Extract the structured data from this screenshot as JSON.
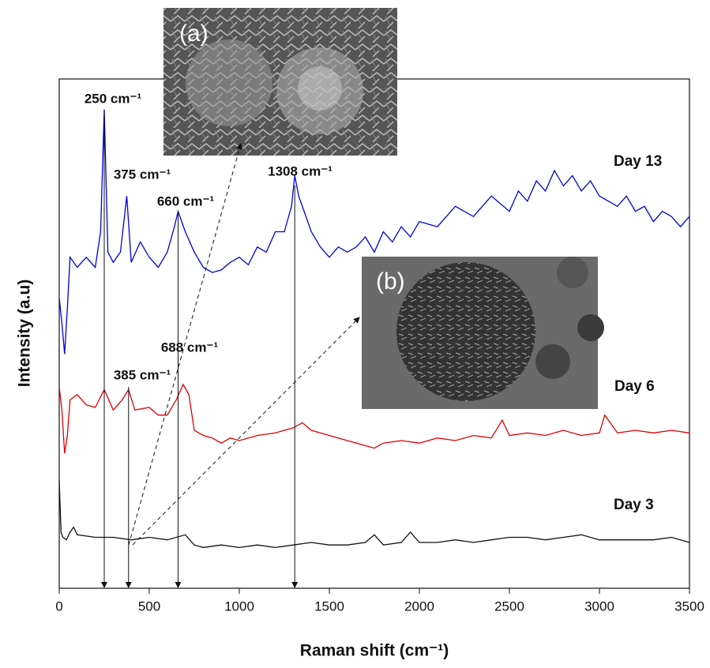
{
  "chart_data": {
    "type": "line",
    "xlabel": "Raman shift (cm⁻¹)",
    "ylabel": "Intensity (a.u)",
    "xlim": [
      0,
      3500
    ],
    "xticks": [
      0,
      500,
      1000,
      1500,
      2000,
      2500,
      3000,
      3500
    ],
    "ylim": [
      0,
      100
    ],
    "series": [
      {
        "name": "Day 13",
        "color": "#0000e0",
        "x": [
          0,
          15,
          30,
          45,
          60,
          100,
          150,
          200,
          230,
          250,
          270,
          300,
          340,
          375,
          400,
          450,
          500,
          550,
          600,
          640,
          660,
          700,
          750,
          800,
          850,
          900,
          950,
          1000,
          1050,
          1100,
          1150,
          1200,
          1250,
          1290,
          1308,
          1330,
          1370,
          1400,
          1450,
          1500,
          1550,
          1600,
          1650,
          1700,
          1750,
          1800,
          1850,
          1900,
          1950,
          2000,
          2100,
          2200,
          2300,
          2400,
          2500,
          2550,
          2600,
          2650,
          2700,
          2750,
          2800,
          2850,
          2900,
          2950,
          3000,
          3050,
          3100,
          3150,
          3200,
          3250,
          3300,
          3350,
          3400,
          3450,
          3500
        ],
        "values": [
          57,
          52,
          46,
          55,
          65,
          63,
          65,
          63,
          70,
          94,
          66,
          64,
          66,
          77,
          64,
          68,
          65,
          63,
          66,
          71,
          74,
          70,
          66,
          63,
          62,
          62.5,
          64,
          65,
          63.5,
          67,
          66,
          70,
          70,
          75,
          81,
          77,
          73,
          70,
          67,
          65,
          67,
          66,
          67,
          69,
          66,
          70,
          68,
          71,
          69,
          72,
          71,
          75,
          73,
          77,
          74,
          78,
          76,
          80,
          78,
          82,
          79,
          81,
          78,
          80,
          77,
          76,
          75,
          77,
          74,
          75,
          72,
          74,
          73,
          71,
          73
        ]
      },
      {
        "name": "Day 6",
        "color": "#e00000",
        "x": [
          0,
          15,
          30,
          45,
          60,
          100,
          150,
          200,
          250,
          300,
          350,
          385,
          420,
          500,
          550,
          600,
          650,
          688,
          720,
          750,
          800,
          850,
          900,
          950,
          1000,
          1100,
          1200,
          1300,
          1350,
          1400,
          1500,
          1600,
          1700,
          1750,
          1800,
          1900,
          2000,
          2100,
          2200,
          2300,
          2400,
          2460,
          2500,
          2600,
          2700,
          2800,
          2900,
          3000,
          3030,
          3100,
          3200,
          3300,
          3400,
          3500
        ],
        "values": [
          39.5,
          35,
          26.5,
          30,
          37,
          38,
          36,
          35.5,
          39,
          35,
          37,
          39,
          35,
          35.5,
          34,
          34,
          37,
          40,
          38,
          31,
          30,
          29.5,
          28.5,
          29.5,
          29,
          30,
          30.5,
          31.5,
          32.5,
          31,
          30,
          29,
          28,
          27.5,
          28.5,
          29,
          28.5,
          29.5,
          29,
          30,
          29.5,
          33,
          30,
          30.5,
          30,
          31,
          30,
          30.5,
          34,
          30.5,
          31,
          30.5,
          31,
          30.5
        ]
      },
      {
        "name": "Day 3",
        "color": "#111111",
        "x": [
          0,
          10,
          20,
          40,
          60,
          80,
          100,
          200,
          300,
          400,
          500,
          600,
          700,
          750,
          800,
          900,
          1000,
          1100,
          1200,
          1300,
          1400,
          1500,
          1600,
          1700,
          1750,
          1800,
          1900,
          1950,
          2000,
          2100,
          2200,
          2300,
          2400,
          2500,
          2600,
          2700,
          2800,
          2900,
          3000,
          3100,
          3200,
          3300,
          3400,
          3500
        ],
        "values": [
          21,
          11,
          10,
          9.5,
          11,
          12,
          10.5,
          10,
          10,
          9.5,
          10,
          9.5,
          10.5,
          8.5,
          8,
          8.5,
          8,
          8.5,
          8,
          8.5,
          9,
          8.5,
          8.5,
          9,
          10.5,
          8.5,
          9,
          11,
          9,
          9,
          9.5,
          9,
          9.5,
          10,
          10,
          9.5,
          10,
          10.5,
          9.5,
          9.5,
          9.5,
          9.5,
          10,
          9
        ]
      }
    ],
    "annotations": [
      "250 cm⁻¹",
      "375 cm⁻¹",
      "660 cm⁻¹",
      "1308 cm⁻¹",
      "688 cm⁻¹",
      "385 cm⁻¹"
    ],
    "markers": [
      250,
      385,
      660,
      1308
    ],
    "insets": [
      "(a)",
      "(b)"
    ]
  }
}
